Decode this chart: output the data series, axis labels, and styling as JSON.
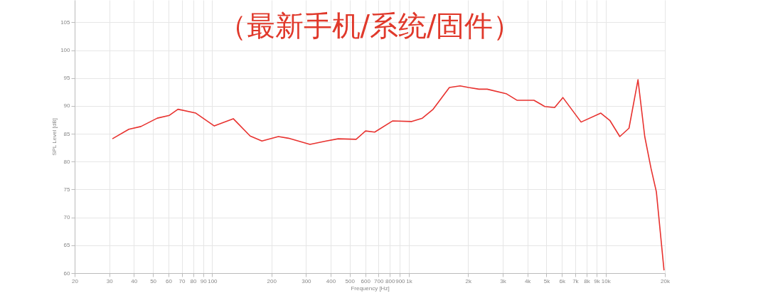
{
  "chart_data": {
    "type": "line",
    "title": "（最新手机/系统/固件）",
    "xlabel": "Frequency [Hz]",
    "ylabel": "SPL Level [dB]",
    "log": "x",
    "x": [
      31.1,
      37.7,
      43.4,
      52.6,
      60.6,
      67,
      82.6,
      102.5,
      128,
      156,
      179,
      217,
      244,
      314,
      380,
      437,
      539,
      602,
      670,
      825,
      1034,
      1170,
      1328,
      1606,
      1820,
      2010,
      2270,
      2500,
      3120,
      3550,
      4320,
      4900,
      5500,
      6060,
      7500,
      9450,
      10500,
      11800,
      13140,
      14600,
      15800,
      17000,
      18100,
      19800
    ],
    "series": [
      {
        "color": "#e8322f",
        "values": [
          84.1,
          85.8,
          86.3,
          87.8,
          88.3,
          89.4,
          88.7,
          86.4,
          87.7,
          84.6,
          83.7,
          84.5,
          84.2,
          83.1,
          83.7,
          84.1,
          84.0,
          85.5,
          85.3,
          87.3,
          87.2,
          87.8,
          89.4,
          93.3,
          93.6,
          93.3,
          93.0,
          93.0,
          92.2,
          91.0,
          91.0,
          89.9,
          89.7,
          91.5,
          87.1,
          88.7,
          87.4,
          84.5,
          86.0,
          94.7,
          84.5,
          78.8,
          74.6,
          60.5
        ]
      }
    ],
    "xlim": [
      20,
      20000
    ],
    "ylim": [
      60,
      109
    ],
    "xticks": [
      20,
      30,
      40,
      50,
      60,
      70,
      80,
      90,
      100,
      200,
      300,
      400,
      500,
      600,
      700,
      800,
      900,
      {
        "value": 1000,
        "label": "1k"
      },
      {
        "value": 2000,
        "label": "2k"
      },
      {
        "value": 3000,
        "label": "3k"
      },
      {
        "value": 4000,
        "label": "4k"
      },
      {
        "value": 5000,
        "label": "5k"
      },
      {
        "value": 6000,
        "label": "6k"
      },
      {
        "value": 7000,
        "label": "7k"
      },
      {
        "value": 8000,
        "label": "8k"
      },
      {
        "value": 9000,
        "label": "9k"
      },
      {
        "value": 10000,
        "label": "10k"
      },
      {
        "value": 20000,
        "label": "20k"
      }
    ],
    "yticks": [
      60,
      65,
      70,
      75,
      80,
      85,
      90,
      95,
      100,
      105
    ],
    "grid": true,
    "line_style": "solid"
  }
}
